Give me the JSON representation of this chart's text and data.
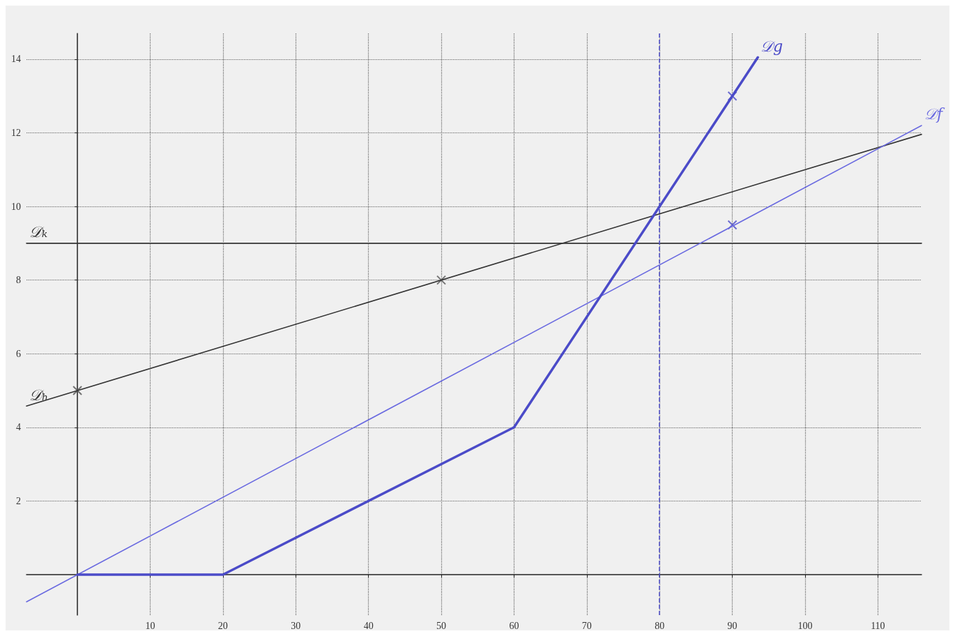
{
  "chart_data": {
    "type": "line",
    "xlim": [
      -7,
      116
    ],
    "ylim": [
      -1.1,
      14.7
    ],
    "xticks": [
      10,
      20,
      30,
      40,
      50,
      60,
      70,
      80,
      90,
      100,
      110
    ],
    "yticks": [
      2,
      4,
      6,
      8,
      10,
      12,
      14
    ],
    "grid": true,
    "legend": false,
    "line_style": "solid",
    "marker": "none",
    "series": [
      {
        "name": "𝒟ₖ",
        "color": "#333333",
        "x": [
          116,
          -7
        ],
        "values": [
          9,
          9
        ]
      },
      {
        "name": "𝒟ₕ",
        "color": "#333333",
        "x": [
          116,
          -7
        ],
        "values": [
          11.96,
          4.58
        ]
      },
      {
        "name": "𝒟f",
        "color": "#6a6ae0",
        "x": [
          -7,
          116
        ],
        "values": [
          -0.74,
          12.2
        ]
      },
      {
        "name": "𝒟g",
        "color": "#4b4bc8",
        "x": [
          0,
          20,
          60,
          90,
          93.5
        ],
        "values": [
          0,
          0,
          4,
          13,
          14.05
        ]
      },
      {
        "type": "scatter",
        "marker": "cross",
        "color": "#555555",
        "x": [
          0,
          50
        ],
        "values": [
          5,
          8
        ]
      },
      {
        "type": "scatter",
        "marker": "cross",
        "color": "#4b4bc8",
        "x": [
          90,
          90
        ],
        "values": [
          13,
          9.5
        ]
      }
    ],
    "ref_lines": [
      {
        "axis": "x",
        "value": 80,
        "line_style": "dashed",
        "color": "#4b4bc8"
      }
    ]
  }
}
